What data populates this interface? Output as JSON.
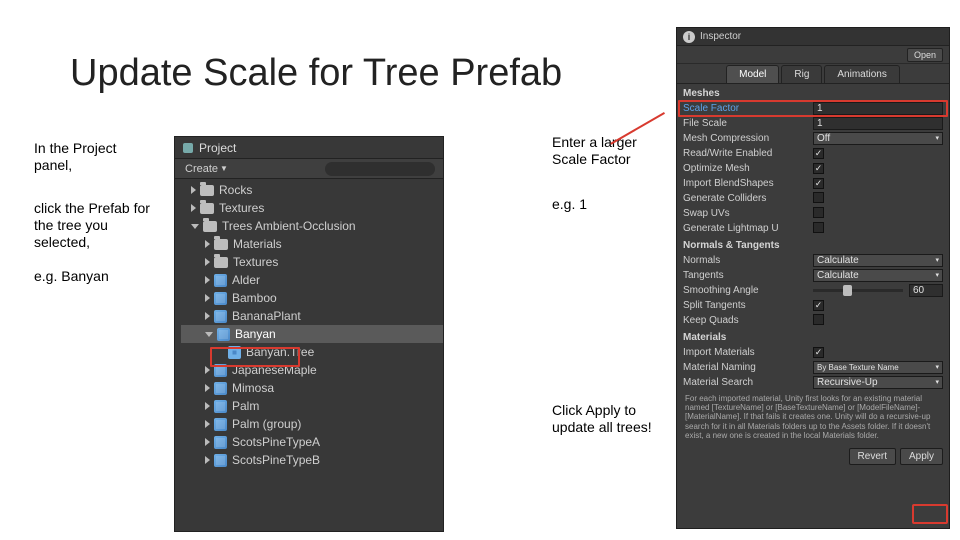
{
  "title": "Update Scale for Tree Prefab",
  "annotations": {
    "left1": "In the Project panel,",
    "left2": "click the Prefab for the tree you selected,",
    "left3": "e.g. Banyan",
    "mid1": "Enter a larger Scale Factor",
    "mid2": "e.g. 1",
    "mid3": "Click Apply to update all trees!"
  },
  "colors": {
    "highlight": "#d83a2f",
    "panel_bg": "#383838",
    "inspector_bg": "#3c3c3c",
    "text": "#cfcfcf",
    "field_bg": "#2f2f2f",
    "link_blue": "#5da2e8"
  },
  "project": {
    "tab_label": "Project",
    "create_label": "Create",
    "items": [
      {
        "level": 1,
        "kind": "folder",
        "label": "Rocks",
        "expand": "closed"
      },
      {
        "level": 1,
        "kind": "folder",
        "label": "Textures",
        "expand": "closed"
      },
      {
        "level": 1,
        "kind": "folder",
        "label": "Trees Ambient-Occlusion",
        "expand": "open"
      },
      {
        "level": 2,
        "kind": "folder",
        "label": "Materials",
        "expand": "closed"
      },
      {
        "level": 2,
        "kind": "folder",
        "label": "Textures",
        "expand": "closed"
      },
      {
        "level": 2,
        "kind": "prefab",
        "label": "Alder",
        "expand": "closed"
      },
      {
        "level": 2,
        "kind": "prefab",
        "label": "Bamboo",
        "expand": "closed"
      },
      {
        "level": 2,
        "kind": "prefab",
        "label": "BananaPlant",
        "expand": "closed"
      },
      {
        "level": 2,
        "kind": "prefab",
        "label": "Banyan",
        "expand": "open",
        "selected": true
      },
      {
        "level": 3,
        "kind": "mesh",
        "label": "Banyan.Tree",
        "expand": "none"
      },
      {
        "level": 2,
        "kind": "prefab",
        "label": "JapaneseMaple",
        "expand": "closed"
      },
      {
        "level": 2,
        "kind": "prefab",
        "label": "Mimosa",
        "expand": "closed"
      },
      {
        "level": 2,
        "kind": "prefab",
        "label": "Palm",
        "expand": "closed"
      },
      {
        "level": 2,
        "kind": "prefab",
        "label": "Palm (group)",
        "expand": "closed"
      },
      {
        "level": 2,
        "kind": "prefab",
        "label": "ScotsPineTypeA",
        "expand": "closed"
      },
      {
        "level": 2,
        "kind": "prefab",
        "label": "ScotsPineTypeB",
        "expand": "closed"
      }
    ]
  },
  "inspector": {
    "tab": "Inspector",
    "open_btn": "Open",
    "tabs": {
      "model": "Model",
      "rig": "Rig",
      "animations": "Animations"
    },
    "section_meshes": "Meshes",
    "scale_factor": {
      "label": "Scale Factor",
      "value": "1"
    },
    "file_scale": {
      "label": "File Scale",
      "value": "1"
    },
    "mesh_compression": {
      "label": "Mesh Compression",
      "value": "Off"
    },
    "read_write": {
      "label": "Read/Write Enabled",
      "checked": true
    },
    "optimize_mesh": {
      "label": "Optimize Mesh",
      "checked": true
    },
    "import_blend": {
      "label": "Import BlendShapes",
      "checked": true
    },
    "generate_colliders": {
      "label": "Generate Colliders",
      "checked": false
    },
    "swap_uvs": {
      "label": "Swap UVs",
      "checked": false
    },
    "generate_lightmap": {
      "label": "Generate Lightmap U",
      "checked": false
    },
    "section_normals": "Normals & Tangents",
    "normals": {
      "label": "Normals",
      "value": "Calculate"
    },
    "tangents": {
      "label": "Tangents",
      "value": "Calculate"
    },
    "smoothing_angle": {
      "label": "Smoothing Angle",
      "value": "60",
      "percent": 33
    },
    "split_tangents": {
      "label": "Split Tangents",
      "checked": true
    },
    "keep_quads": {
      "label": "Keep Quads",
      "checked": false
    },
    "section_materials": "Materials",
    "import_materials": {
      "label": "Import Materials",
      "checked": true
    },
    "material_naming": {
      "label": "Material Naming",
      "value": "By Base Texture Name"
    },
    "material_search": {
      "label": "Material Search",
      "value": "Recursive-Up"
    },
    "help": "For each imported material, Unity first looks for an existing material named [TextureName] or [BaseTextureName] or [ModelFileName]-[MaterialName]. If that fails it creates one.\nUnity will do a recursive-up search for it in all Materials folders up to the Assets folder.\nIf it doesn't exist, a new one is created in the local Materials folder.",
    "revert_btn": "Revert",
    "apply_btn": "Apply"
  }
}
